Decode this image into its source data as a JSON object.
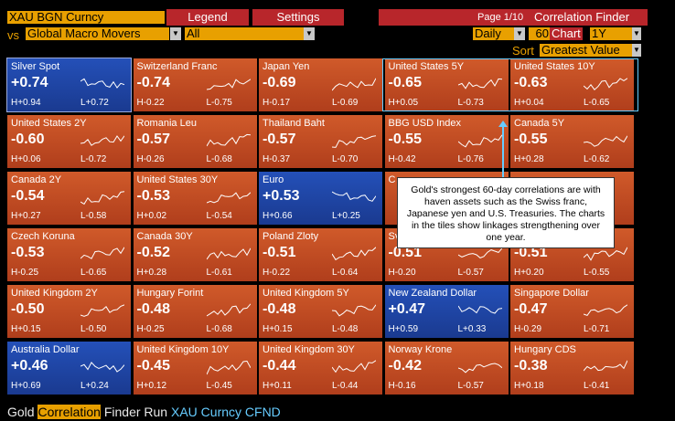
{
  "header": {
    "security": "XAU BGN Curncy",
    "tabs": [
      "Legend",
      "Settings"
    ],
    "page": "Page 1/10",
    "function": "Correlation Finder"
  },
  "filters": {
    "vs_label": "vs",
    "universe": "Global Macro Movers",
    "subset": "All",
    "period": "Daily",
    "window": "60",
    "chart_label": "Chart",
    "chart_range": "1Y",
    "sort_label": "Sort",
    "sort_value": "Greatest Value"
  },
  "tiles": [
    {
      "name": "Silver Spot",
      "value": "+0.74",
      "high": "H+0.94",
      "low": "L+0.72",
      "color": "blue"
    },
    {
      "name": "Switzerland Franc",
      "value": "-0.74",
      "high": "H-0.22",
      "low": "L-0.75",
      "color": "orange"
    },
    {
      "name": "Japan Yen",
      "value": "-0.69",
      "high": "H-0.17",
      "low": "L-0.69",
      "color": "orange"
    },
    {
      "name": "United States 5Y",
      "value": "-0.65",
      "high": "H+0.05",
      "low": "L-0.73",
      "color": "orange"
    },
    {
      "name": "United States 10Y",
      "value": "-0.63",
      "high": "H+0.04",
      "low": "L-0.65",
      "color": "orange"
    },
    {
      "name": "United States 2Y",
      "value": "-0.60",
      "high": "H+0.06",
      "low": "L-0.72",
      "color": "orange"
    },
    {
      "name": "Romania Leu",
      "value": "-0.57",
      "high": "H-0.26",
      "low": "L-0.68",
      "color": "orange"
    },
    {
      "name": "Thailand Baht",
      "value": "-0.57",
      "high": "H-0.37",
      "low": "L-0.70",
      "color": "orange"
    },
    {
      "name": "BBG USD Index",
      "value": "-0.55",
      "high": "H-0.42",
      "low": "L-0.76",
      "color": "orange"
    },
    {
      "name": "Canada 5Y",
      "value": "-0.55",
      "high": "H+0.28",
      "low": "L-0.62",
      "color": "orange"
    },
    {
      "name": "Canada 2Y",
      "value": "-0.54",
      "high": "H+0.27",
      "low": "L-0.58",
      "color": "orange"
    },
    {
      "name": "United States 30Y",
      "value": "-0.53",
      "high": "H+0.02",
      "low": "L-0.54",
      "color": "orange"
    },
    {
      "name": "Euro",
      "value": "+0.53",
      "high": "H+0.66",
      "low": "L+0.25",
      "color": "blue"
    },
    {
      "name": "C",
      "value": "",
      "high": "",
      "low": "",
      "color": "orange"
    },
    {
      "name": "",
      "value": "",
      "high": "",
      "low": "",
      "color": "orange"
    },
    {
      "name": "Czech Koruna",
      "value": "-0.53",
      "high": "H-0.25",
      "low": "L-0.65",
      "color": "orange"
    },
    {
      "name": "Canada 30Y",
      "value": "-0.52",
      "high": "H+0.28",
      "low": "L-0.61",
      "color": "orange"
    },
    {
      "name": "Poland Zloty",
      "value": "-0.51",
      "high": "H-0.22",
      "low": "L-0.64",
      "color": "orange"
    },
    {
      "name": "Sv",
      "value": "-0.51",
      "high": "H-0.20",
      "low": "L-0.57",
      "color": "orange"
    },
    {
      "name": "",
      "value": "-0.51",
      "high": "H+0.20",
      "low": "L-0.55",
      "color": "orange"
    },
    {
      "name": "United Kingdom 2Y",
      "value": "-0.50",
      "high": "H+0.15",
      "low": "L-0.50",
      "color": "orange"
    },
    {
      "name": "Hungary Forint",
      "value": "-0.48",
      "high": "H-0.25",
      "low": "L-0.68",
      "color": "orange"
    },
    {
      "name": "United Kingdom 5Y",
      "value": "-0.48",
      "high": "H+0.15",
      "low": "L-0.48",
      "color": "orange"
    },
    {
      "name": "New Zealand Dollar",
      "value": "+0.47",
      "high": "H+0.59",
      "low": "L+0.33",
      "color": "blue"
    },
    {
      "name": "Singapore Dollar",
      "value": "-0.47",
      "high": "H-0.29",
      "low": "L-0.71",
      "color": "orange"
    },
    {
      "name": "Australia Dollar",
      "value": "+0.46",
      "high": "H+0.69",
      "low": "L+0.24",
      "color": "blue"
    },
    {
      "name": "United Kingdom 10Y",
      "value": "-0.45",
      "high": "H+0.12",
      "low": "L-0.45",
      "color": "orange"
    },
    {
      "name": "United Kingdom 30Y",
      "value": "-0.44",
      "high": "H+0.11",
      "low": "L-0.44",
      "color": "orange"
    },
    {
      "name": "Norway Krone",
      "value": "-0.42",
      "high": "H-0.16",
      "low": "L-0.57",
      "color": "orange"
    },
    {
      "name": "Hungary CDS",
      "value": "-0.38",
      "high": "H+0.18",
      "low": "L-0.41",
      "color": "orange"
    }
  ],
  "callout": {
    "text": "Gold's strongest 60-day correlations are with haven assets such as the Swiss franc, Japanese yen and U.S. Treasuries. The charts in the tiles show linkages strengthening over one year."
  },
  "footer": {
    "prefix": "Gold ",
    "highlight": "Correlation",
    "middle": " Finder  Run ",
    "command": "XAU Curncy CFND"
  },
  "colors": {
    "amber": "#e8a000",
    "red": "#b8262b",
    "tile_orange": "#c44a22",
    "tile_blue": "#2450b8"
  }
}
